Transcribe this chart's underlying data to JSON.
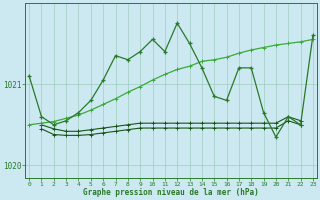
{
  "title": "Graphe pression niveau de la mer (hPa)",
  "bg_color": "#cce8f0",
  "grid_color": "#a0ccc0",
  "line_volatile": "#2a7a2a",
  "line_diagonal": "#3aaa3a",
  "line_flat1": "#1a551a",
  "line_flat2": "#1a551a",
  "ylim": [
    1019.85,
    1022.0
  ],
  "xlim": [
    -0.3,
    23.3
  ],
  "yticks": [
    1020,
    1021
  ],
  "ytick_labels": [
    "1020",
    "1021"
  ],
  "xticks": [
    0,
    1,
    2,
    3,
    4,
    5,
    6,
    7,
    8,
    9,
    10,
    11,
    12,
    13,
    14,
    15,
    16,
    17,
    18,
    19,
    20,
    21,
    22,
    23
  ],
  "series_volatile_x": [
    0,
    1,
    2,
    3,
    4,
    5,
    6,
    7,
    8,
    9,
    10,
    11,
    12,
    13,
    14,
    15,
    16,
    17,
    18,
    19,
    20,
    21,
    22,
    23
  ],
  "series_volatile": [
    1021.1,
    1020.6,
    1020.5,
    1020.55,
    1020.65,
    1020.8,
    1021.05,
    1021.35,
    1021.3,
    1021.4,
    1021.55,
    1021.4,
    1021.75,
    1021.5,
    1021.2,
    1020.85,
    1020.8,
    1021.2,
    1021.2,
    1020.65,
    1020.35,
    1020.6,
    1020.5,
    1021.6
  ],
  "series_diagonal_x": [
    0,
    1,
    2,
    3,
    4,
    5,
    6,
    7,
    8,
    9,
    10,
    11,
    12,
    13,
    14,
    15,
    16,
    17,
    18,
    19,
    20,
    21,
    22,
    23
  ],
  "series_diagonal": [
    1020.5,
    1020.52,
    1020.54,
    1020.58,
    1020.62,
    1020.68,
    1020.75,
    1020.82,
    1020.9,
    1020.97,
    1021.05,
    1021.12,
    1021.18,
    1021.22,
    1021.28,
    1021.3,
    1021.33,
    1021.38,
    1021.42,
    1021.45,
    1021.48,
    1021.5,
    1021.52,
    1021.55
  ],
  "series_flat1_x": [
    1,
    2,
    3,
    4,
    5,
    6,
    7,
    8,
    9,
    10,
    11,
    12,
    13,
    14,
    15,
    16,
    17,
    18,
    19,
    20,
    21,
    22
  ],
  "series_flat1": [
    1020.5,
    1020.45,
    1020.42,
    1020.42,
    1020.44,
    1020.46,
    1020.48,
    1020.5,
    1020.52,
    1020.52,
    1020.52,
    1020.52,
    1020.52,
    1020.52,
    1020.52,
    1020.52,
    1020.52,
    1020.52,
    1020.52,
    1020.52,
    1020.6,
    1020.55
  ],
  "series_flat2_x": [
    1,
    2,
    3,
    4,
    5,
    6,
    7,
    8,
    9,
    10,
    11,
    12,
    13,
    14,
    15,
    16,
    17,
    18,
    19,
    20,
    21,
    22
  ],
  "series_flat2": [
    1020.45,
    1020.38,
    1020.37,
    1020.37,
    1020.38,
    1020.4,
    1020.42,
    1020.44,
    1020.46,
    1020.46,
    1020.46,
    1020.46,
    1020.46,
    1020.46,
    1020.46,
    1020.46,
    1020.46,
    1020.46,
    1020.46,
    1020.46,
    1020.55,
    1020.5
  ]
}
